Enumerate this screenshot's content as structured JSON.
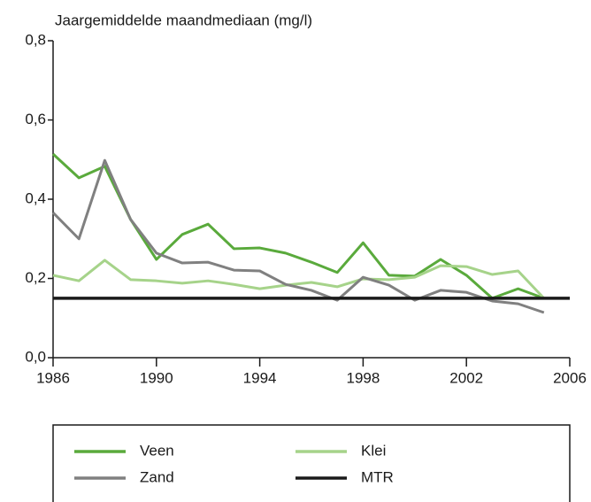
{
  "chart_data": {
    "type": "line",
    "title": "Jaargemiddelde maandmediaan (mg/l)",
    "x": [
      1986,
      1987,
      1988,
      1989,
      1990,
      1991,
      1992,
      1993,
      1994,
      1995,
      1996,
      1997,
      1998,
      1999,
      2000,
      2001,
      2002,
      2003,
      2004,
      2005
    ],
    "series": [
      {
        "name": "Veen",
        "color": "#5aaa3c",
        "values": [
          0.514,
          0.454,
          0.483,
          0.349,
          0.248,
          0.311,
          0.337,
          0.275,
          0.277,
          0.264,
          0.241,
          0.215,
          0.29,
          0.208,
          0.206,
          0.248,
          0.208,
          0.15,
          0.174,
          0.15
        ]
      },
      {
        "name": "Klei",
        "color": "#a6d38a",
        "values": [
          0.208,
          0.194,
          0.246,
          0.197,
          0.194,
          0.188,
          0.194,
          0.185,
          0.174,
          0.183,
          0.19,
          0.179,
          0.199,
          0.197,
          0.203,
          0.232,
          0.23,
          0.21,
          0.219,
          0.15
        ]
      },
      {
        "name": "Zand",
        "color": "#808080",
        "values": [
          0.366,
          0.3,
          0.498,
          0.349,
          0.264,
          0.239,
          0.241,
          0.221,
          0.219,
          0.185,
          0.17,
          0.145,
          0.203,
          0.183,
          0.145,
          0.17,
          0.165,
          0.143,
          0.136,
          0.114
        ]
      },
      {
        "name": "MTR",
        "color": "#1a1a1a",
        "x": [
          1986,
          2006
        ],
        "values": [
          0.15,
          0.15
        ]
      }
    ],
    "xlim": [
      1986,
      2006
    ],
    "xticks": [
      1986,
      1990,
      1994,
      1998,
      2002,
      2006
    ],
    "ylim": [
      0,
      0.8
    ],
    "yticks": [
      {
        "value": 0,
        "label": "0,0"
      },
      {
        "value": 0.2,
        "label": "0,2"
      },
      {
        "value": 0.4,
        "label": "0,4"
      },
      {
        "value": 0.6,
        "label": "0,6"
      },
      {
        "value": 0.8,
        "label": "0,8"
      }
    ],
    "legend": "bottom"
  }
}
